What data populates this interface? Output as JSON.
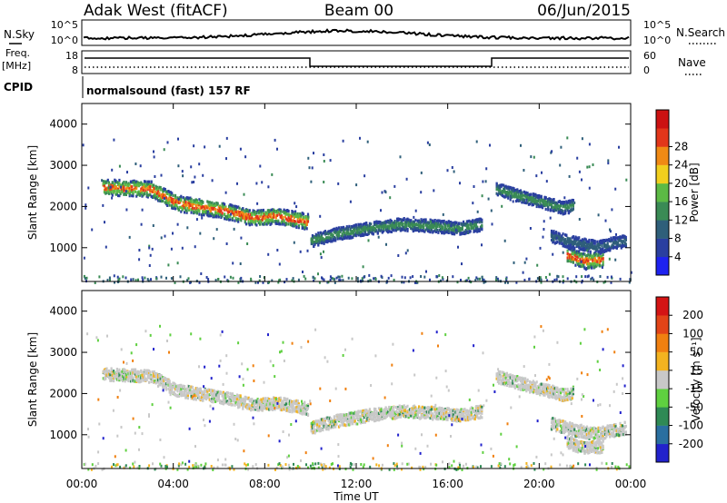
{
  "header": {
    "station": "Adak West (fitACF)",
    "beam": "Beam 00",
    "date": "06/Jun/2015"
  },
  "summary_panels": {
    "nsky_label": "N.Sky",
    "nsearch_label": "N.Search",
    "noise_ticks_left": [
      "10^5",
      "10^0"
    ],
    "noise_ticks_right": [
      "10^5",
      "10^0"
    ],
    "freq_label": "Freq.",
    "freq_unit": "[MHz]",
    "freq_ticks": [
      "18",
      "8"
    ],
    "nave_label": "Nave",
    "nave_ticks": [
      "60",
      "0"
    ],
    "cpid_label": "CPID",
    "cpid_text": "normalsound (fast) 157 RF"
  },
  "chart_data": [
    {
      "type": "heatmap",
      "name": "power",
      "ylabel": "Slant Range [km]",
      "yticks": [
        1000,
        2000,
        3000,
        4000
      ],
      "ylim": [
        180,
        4500
      ],
      "xlim": [
        0,
        24
      ],
      "colorbar": {
        "label": "Power [dB]",
        "ticks": [
          "4",
          "8",
          "12",
          "16",
          "20",
          "24",
          "28"
        ],
        "colors": [
          "#1e22f0",
          "#2a3fa0",
          "#2f5f7a",
          "#3a8b55",
          "#5cba45",
          "#f1cf1e",
          "#f08a14",
          "#e2361a",
          "#cc1212"
        ]
      },
      "bands": [
        {
          "t": [
            0.9,
            3.0,
            4.2,
            6.0,
            7.5,
            8.5,
            9.5,
            9.9
          ],
          "r": [
            2500,
            2450,
            2100,
            1950,
            1750,
            1800,
            1700,
            1650
          ],
          "level": "high"
        },
        {
          "t": [
            10.0,
            11.0,
            12.5,
            14.0,
            15.5,
            16.5,
            17.5
          ],
          "r": [
            1200,
            1350,
            1500,
            1600,
            1550,
            1500,
            1600
          ],
          "level": "mid"
        },
        {
          "t": [
            18.1,
            19.0,
            20.0,
            21.0,
            21.5
          ],
          "r": [
            2450,
            2300,
            2150,
            2000,
            2050
          ],
          "level": "mid"
        },
        {
          "t": [
            20.5,
            21.5,
            22.5,
            23.8
          ],
          "r": [
            1300,
            1150,
            1050,
            1200
          ],
          "level": "low"
        },
        {
          "t": [
            21.2,
            22.0,
            22.8
          ],
          "r": [
            850,
            700,
            750
          ],
          "level": "high"
        }
      ]
    },
    {
      "type": "heatmap",
      "name": "velocity",
      "ylabel": "Slant Range [km]",
      "xlabel": "Time UT",
      "xticks": [
        "00:00",
        "04:00",
        "08:00",
        "12:00",
        "16:00",
        "20:00",
        "00:00"
      ],
      "yticks": [
        1000,
        2000,
        3000,
        4000
      ],
      "ylim": [
        180,
        4500
      ],
      "xlim": [
        0,
        24
      ],
      "colorbar": {
        "label": "Velocity [m s⁻¹]",
        "ticks": [
          "200",
          "100",
          "50",
          "15",
          "-15",
          "-50",
          "-100",
          "-200"
        ],
        "colors": [
          "#2222cc",
          "#2a6fa0",
          "#2f8a55",
          "#5fd040",
          "#c8c8c8",
          "#f3b320",
          "#f08010",
          "#e24418",
          "#d41414"
        ]
      },
      "bands": [
        {
          "t": [
            0.9,
            3.0,
            4.2,
            6.0,
            7.5,
            8.5,
            9.5,
            9.9
          ],
          "r": [
            2500,
            2450,
            2100,
            1950,
            1750,
            1800,
            1700,
            1650
          ],
          "level": "gray"
        },
        {
          "t": [
            10.0,
            11.0,
            12.5,
            14.0,
            15.5,
            16.5,
            17.5
          ],
          "r": [
            1200,
            1350,
            1500,
            1600,
            1550,
            1500,
            1600
          ],
          "level": "gray"
        },
        {
          "t": [
            18.1,
            19.0,
            20.0,
            21.0,
            21.5
          ],
          "r": [
            2450,
            2300,
            2150,
            2000,
            2050
          ],
          "level": "gray"
        },
        {
          "t": [
            20.5,
            21.5,
            22.5,
            23.8
          ],
          "r": [
            1300,
            1150,
            1050,
            1200
          ],
          "level": "gray"
        },
        {
          "t": [
            21.2,
            22.0,
            22.8
          ],
          "r": [
            850,
            700,
            750
          ],
          "level": "gray"
        }
      ]
    }
  ]
}
